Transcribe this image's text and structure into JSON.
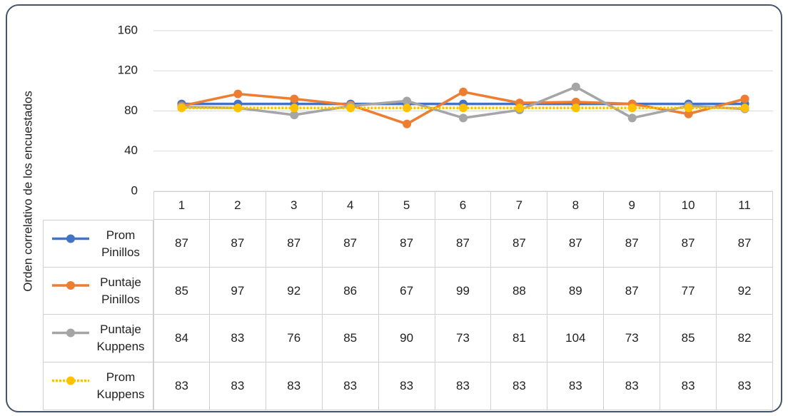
{
  "chart_data": {
    "type": "line",
    "y_label": "Orden correlativo de los encuestados",
    "categories": [
      "1",
      "2",
      "3",
      "4",
      "5",
      "6",
      "7",
      "8",
      "9",
      "10",
      "11"
    ],
    "series": [
      {
        "name": "Prom Pinillos",
        "color": "#4472c4",
        "values": [
          87,
          87,
          87,
          87,
          87,
          87,
          87,
          87,
          87,
          87,
          87
        ]
      },
      {
        "name": "Puntaje Pinillos",
        "color": "#ed7d31",
        "values": [
          85,
          97,
          92,
          86,
          67,
          99,
          88,
          89,
          87,
          77,
          92
        ]
      },
      {
        "name": "Puntaje Kuppens",
        "color": "#a5a5a5",
        "values": [
          84,
          83,
          76,
          85,
          90,
          73,
          81,
          104,
          73,
          85,
          82
        ]
      },
      {
        "name": "Prom Kuppens",
        "color": "#ffc000",
        "values": [
          83,
          83,
          83,
          83,
          83,
          83,
          83,
          83,
          83,
          83,
          83
        ]
      }
    ],
    "ylim": [
      0,
      160
    ],
    "yticks": [
      0,
      40,
      80,
      120,
      160
    ],
    "grid": true
  }
}
